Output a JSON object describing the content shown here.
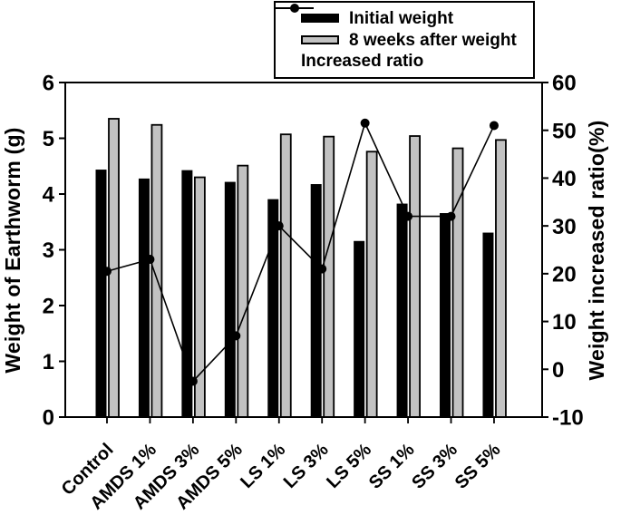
{
  "legend": {
    "items": [
      "Initial weight",
      "8 weeks after weight",
      "Increased ratio"
    ]
  },
  "chart_data": {
    "type": "bar+line combo",
    "categories": [
      "Control",
      "AMDS 1%",
      "AMDS 3%",
      "AMDS 5%",
      "LS 1%",
      "LS 3%",
      "LS 5%",
      "SS 1%",
      "SS 3%",
      "SS 5%"
    ],
    "series": [
      {
        "name": "Initial weight",
        "type": "bar",
        "axis": "left",
        "color": "#000000",
        "values": [
          4.43,
          4.27,
          4.42,
          4.21,
          3.9,
          4.17,
          3.15,
          3.82,
          3.65,
          3.3
        ]
      },
      {
        "name": "8 weeks after weight",
        "type": "bar",
        "axis": "left",
        "color": "#c2c2c2",
        "values": [
          5.35,
          5.24,
          4.3,
          4.51,
          5.07,
          5.03,
          4.76,
          5.04,
          4.82,
          4.97
        ]
      },
      {
        "name": "Increased ratio",
        "type": "line",
        "axis": "right",
        "color": "#000000",
        "marker": "filled-circle",
        "values": [
          20.5,
          23.0,
          -2.5,
          7.0,
          30.0,
          21.0,
          51.5,
          32.0,
          32.0,
          51.0
        ]
      }
    ],
    "left_axis": {
      "label": "Weight of Earthworm (g)",
      "range": [
        0,
        6
      ],
      "ticks": [
        0,
        1,
        2,
        3,
        4,
        5,
        6
      ]
    },
    "right_axis": {
      "label": "Weight increased ratio(%)",
      "range": [
        -10,
        60
      ],
      "ticks": [
        -10,
        0,
        10,
        20,
        30,
        40,
        50,
        60
      ]
    },
    "grid": false,
    "legend_position": "top-right",
    "plot_background": "#ffffff"
  }
}
